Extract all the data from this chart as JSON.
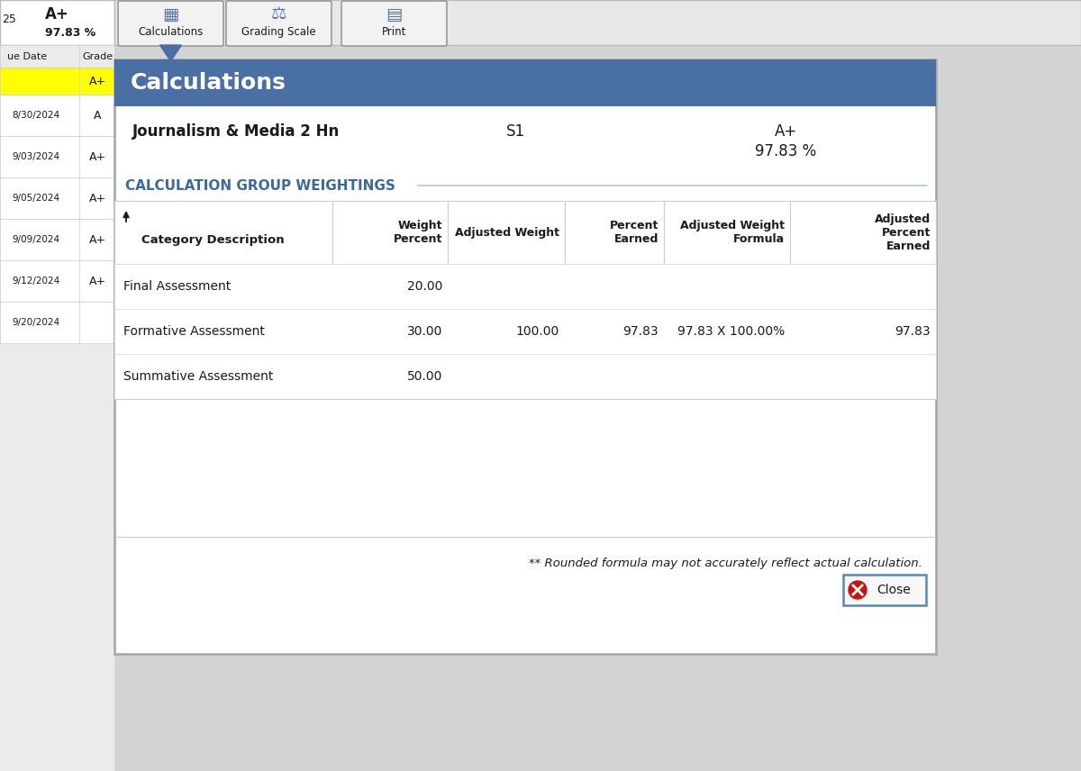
{
  "bg_color": "#d4d4d4",
  "dialog_bg": "#ffffff",
  "header_blue": "#4a6fa5",
  "header_text_color": "#ffffff",
  "section_title_color": "#3a69a0",
  "body_text_color": "#1a1a1a",
  "toolbar_bg": "#e8e8e8",
  "toolbar_border": "#bbbbbb",
  "yellow_highlight": "#ffff00",
  "left_panel_bg": "#ebebeb",
  "left_panel_border": "#cccccc",
  "dialog_title": "Calculations",
  "course_name": "Journalism & Media 2 Hn",
  "semester": "S1",
  "grade_letter": "A+",
  "grade_percent": "97.83 %",
  "section_heading": "CALCULATION GROUP WEIGHTINGS",
  "col_headers": [
    "Category Description",
    "Weight\nPercent",
    "Adjusted Weight",
    "Percent\nEarned",
    "Adjusted Weight\nFormula",
    "Adjusted\nPercent\nEarned"
  ],
  "rows": [
    [
      "Final Assessment",
      "20.00",
      "",
      "",
      "",
      ""
    ],
    [
      "Formative Assessment",
      "30.00",
      "100.00",
      "97.83",
      "97.83 X 100.00%",
      "97.83"
    ],
    [
      "Summative Assessment",
      "50.00",
      "",
      "",
      "",
      ""
    ]
  ],
  "footnote": "** Rounded formula may not accurately reflect actual calculation.",
  "close_btn_text": "Close",
  "left_dates": [
    "8/30/2024",
    "9/03/2024",
    "9/05/2024",
    "9/09/2024",
    "9/12/2024",
    "9/20/2024"
  ],
  "left_grades": [
    "A",
    "A+",
    "A+",
    "A+",
    "A+",
    ""
  ],
  "top_grade": "A+",
  "top_percent": "97.83 %",
  "toolbar_buttons": [
    "Calculations",
    "Grading Scale",
    "Print"
  ]
}
